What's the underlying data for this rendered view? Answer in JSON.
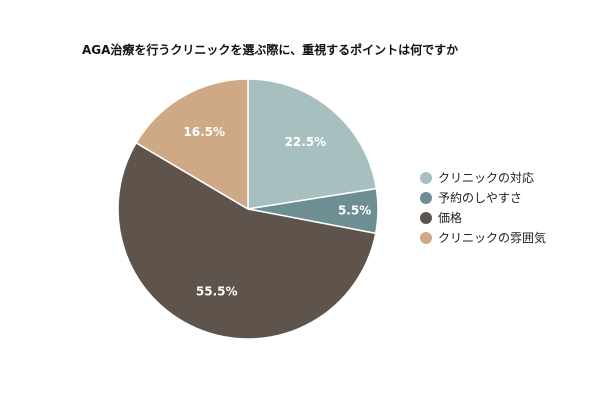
{
  "chart_data": {
    "type": "pie",
    "title": "AGA治療を行うクリニックを選ぶ際に、重視するポイントは何ですか",
    "categories": [
      "クリニックの対応",
      "予約のしやすさ",
      "価格",
      "クリニックの雰囲気"
    ],
    "values": [
      22.5,
      5.5,
      55.5,
      16.5
    ],
    "labels": [
      "22.5%",
      "5.5%",
      "55.5%",
      "16.5%"
    ],
    "colors": [
      "#a8bfbf",
      "#6d8f94",
      "#5e544c",
      "#cfa986"
    ],
    "start_angle": "12 o'clock",
    "direction": "clockwise",
    "legend_position": "right"
  }
}
